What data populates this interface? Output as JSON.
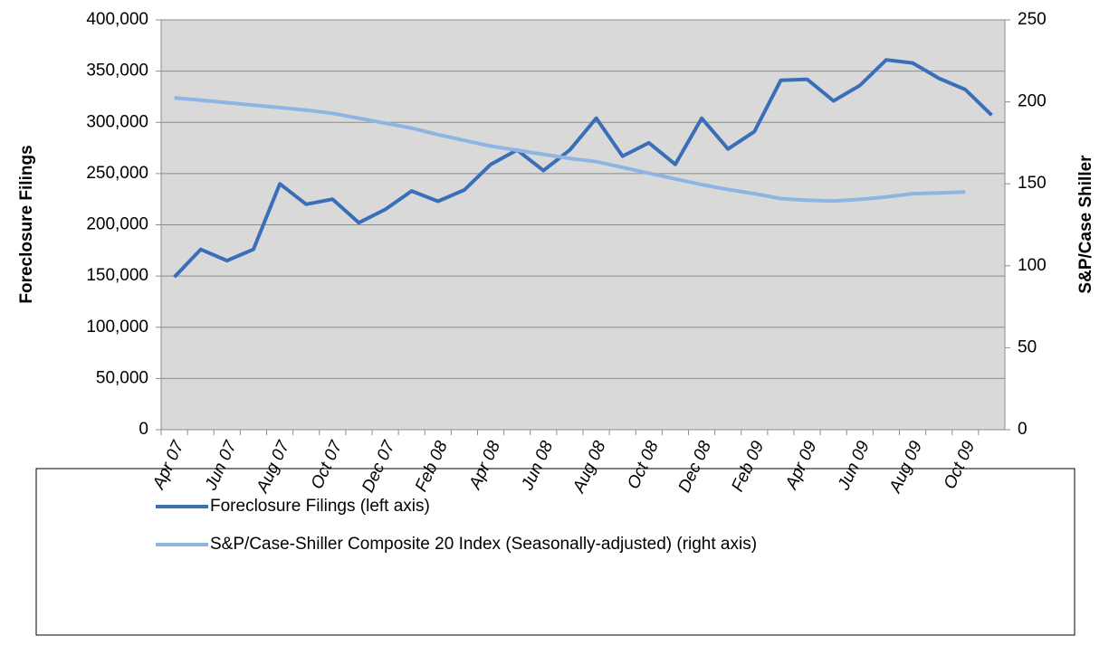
{
  "chart_data": {
    "type": "line",
    "y_label": "Foreclosure Filings",
    "y2_label": "S&P/Case Shiller",
    "categories": [
      "Apr 07",
      null,
      "Jun 07",
      null,
      "Aug 07",
      null,
      "Oct 07",
      null,
      "Dec 07",
      null,
      "Feb 08",
      null,
      "Apr 08",
      null,
      "Jun 08",
      null,
      "Aug 08",
      null,
      "Oct 08",
      null,
      "Dec 08",
      null,
      "Feb 09",
      null,
      "Apr 09",
      null,
      "Jun 09",
      null,
      "Aug 09",
      null,
      "Oct 09",
      null
    ],
    "series": [
      {
        "name": "Foreclosure Filings (left axis)",
        "color": "#3a6eb8",
        "axis": "y",
        "values": [
          149000,
          176000,
          165000,
          176000,
          240000,
          220000,
          225000,
          202000,
          215000,
          233000,
          223000,
          234000,
          259000,
          273000,
          253000,
          273000,
          304000,
          267000,
          280000,
          259000,
          304000,
          274000,
          291000,
          341000,
          342000,
          321000,
          336000,
          361000,
          358000,
          343000,
          332000,
          307000
        ]
      },
      {
        "name": "S&P/Case-Shiller Composite 20 Index (Seasonally-adjusted) (right axis)",
        "color": "#8eb4e3",
        "axis": "y2",
        "values": [
          202.5,
          201,
          199.5,
          198,
          196.5,
          195,
          193,
          190,
          187,
          184,
          180,
          176.5,
          173,
          170.5,
          168,
          165.5,
          163.5,
          160,
          156.5,
          153,
          149.5,
          146.5,
          144,
          141,
          140,
          139.5,
          140.5,
          142,
          144,
          144.5,
          145,
          null
        ]
      }
    ],
    "ylim": [
      0,
      400000
    ],
    "yticks": [
      0,
      {
        "value": 50000,
        "label": "50,000"
      },
      {
        "value": 100000,
        "label": "100,000"
      },
      {
        "value": 150000,
        "label": "150,000"
      },
      {
        "value": 200000,
        "label": "200,000"
      },
      {
        "value": 250000,
        "label": "250,000"
      },
      {
        "value": 300000,
        "label": "300,000"
      },
      {
        "value": 350000,
        "label": "350,000"
      },
      {
        "value": 400000,
        "label": "400,000"
      }
    ],
    "y2lim": [
      0,
      250
    ],
    "y2ticks": [
      0,
      50,
      100,
      150,
      200,
      250
    ],
    "grid": true,
    "legend": "bottom"
  }
}
